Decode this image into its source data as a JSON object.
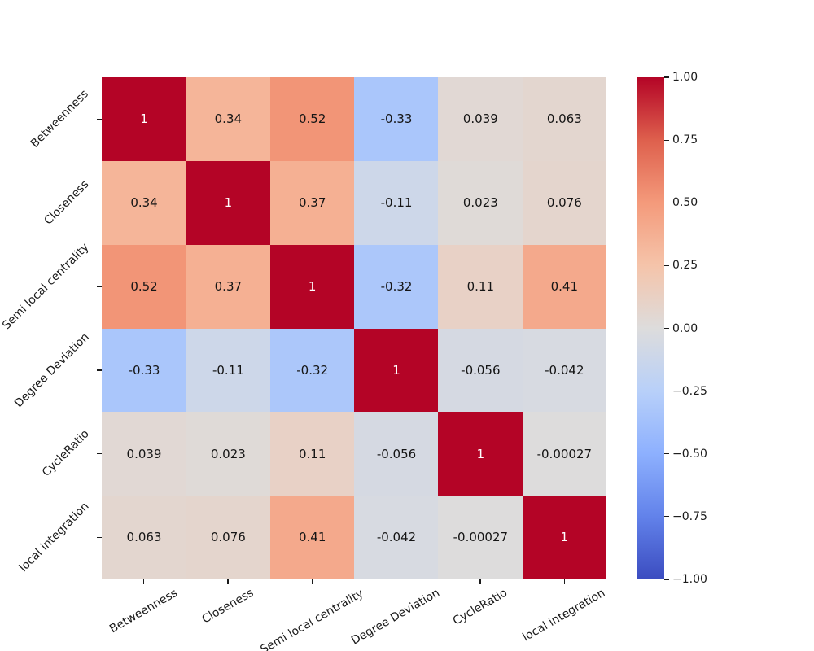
{
  "figure": {
    "background": "#ffffff",
    "text_color": "#1a1a1a"
  },
  "chart_data": {
    "type": "heatmap",
    "title": "",
    "xlabel": "",
    "ylabel": "",
    "categories": [
      "Betweenness",
      "Closeness",
      "Semi local centrality",
      "Degree Deviation",
      "CycleRatio",
      "local integration"
    ],
    "matrix": [
      [
        1,
        0.34,
        0.52,
        -0.33,
        0.039,
        0.063
      ],
      [
        0.34,
        1,
        0.37,
        -0.11,
        0.023,
        0.076
      ],
      [
        0.52,
        0.37,
        1,
        -0.32,
        0.11,
        0.41
      ],
      [
        -0.33,
        -0.11,
        -0.32,
        1,
        -0.056,
        -0.042
      ],
      [
        0.039,
        0.023,
        0.11,
        -0.056,
        1,
        -0.00027
      ],
      [
        0.063,
        0.076,
        0.41,
        -0.042,
        -0.00027,
        1
      ]
    ],
    "cell_labels": [
      [
        "1",
        "0.34",
        "0.52",
        "-0.33",
        "0.039",
        "0.063"
      ],
      [
        "0.34",
        "1",
        "0.37",
        "-0.11",
        "0.023",
        "0.076"
      ],
      [
        "0.52",
        "0.37",
        "1",
        "-0.32",
        "0.11",
        "0.41"
      ],
      [
        "-0.33",
        "-0.11",
        "-0.32",
        "1",
        "-0.056",
        "-0.042"
      ],
      [
        "0.039",
        "0.023",
        "0.11",
        "-0.056",
        "1",
        "-0.00027"
      ],
      [
        "0.063",
        "0.076",
        "0.41",
        "-0.042",
        "-0.00027",
        "1"
      ]
    ],
    "vmin": -1,
    "vmax": 1,
    "grid": false,
    "colormap": "coolwarm",
    "colormap_anchors": [
      "#3b4cc0",
      "#6282ea",
      "#8db0fe",
      "#b8d0f9",
      "#dddcdc",
      "#f5c4aa",
      "#f49a7b",
      "#de604d",
      "#b40426"
    ],
    "annotation_colors": {
      "light": "#ffffff",
      "dark": "#151515"
    },
    "x_tick_rotation": 30,
    "y_tick_rotation": 45,
    "colorbar": {
      "position": "right",
      "ticks": [
        "1.00",
        "0.75",
        "0.50",
        "0.25",
        "0.00",
        "−0.25",
        "−0.50",
        "−0.75",
        "−1.00"
      ]
    }
  }
}
